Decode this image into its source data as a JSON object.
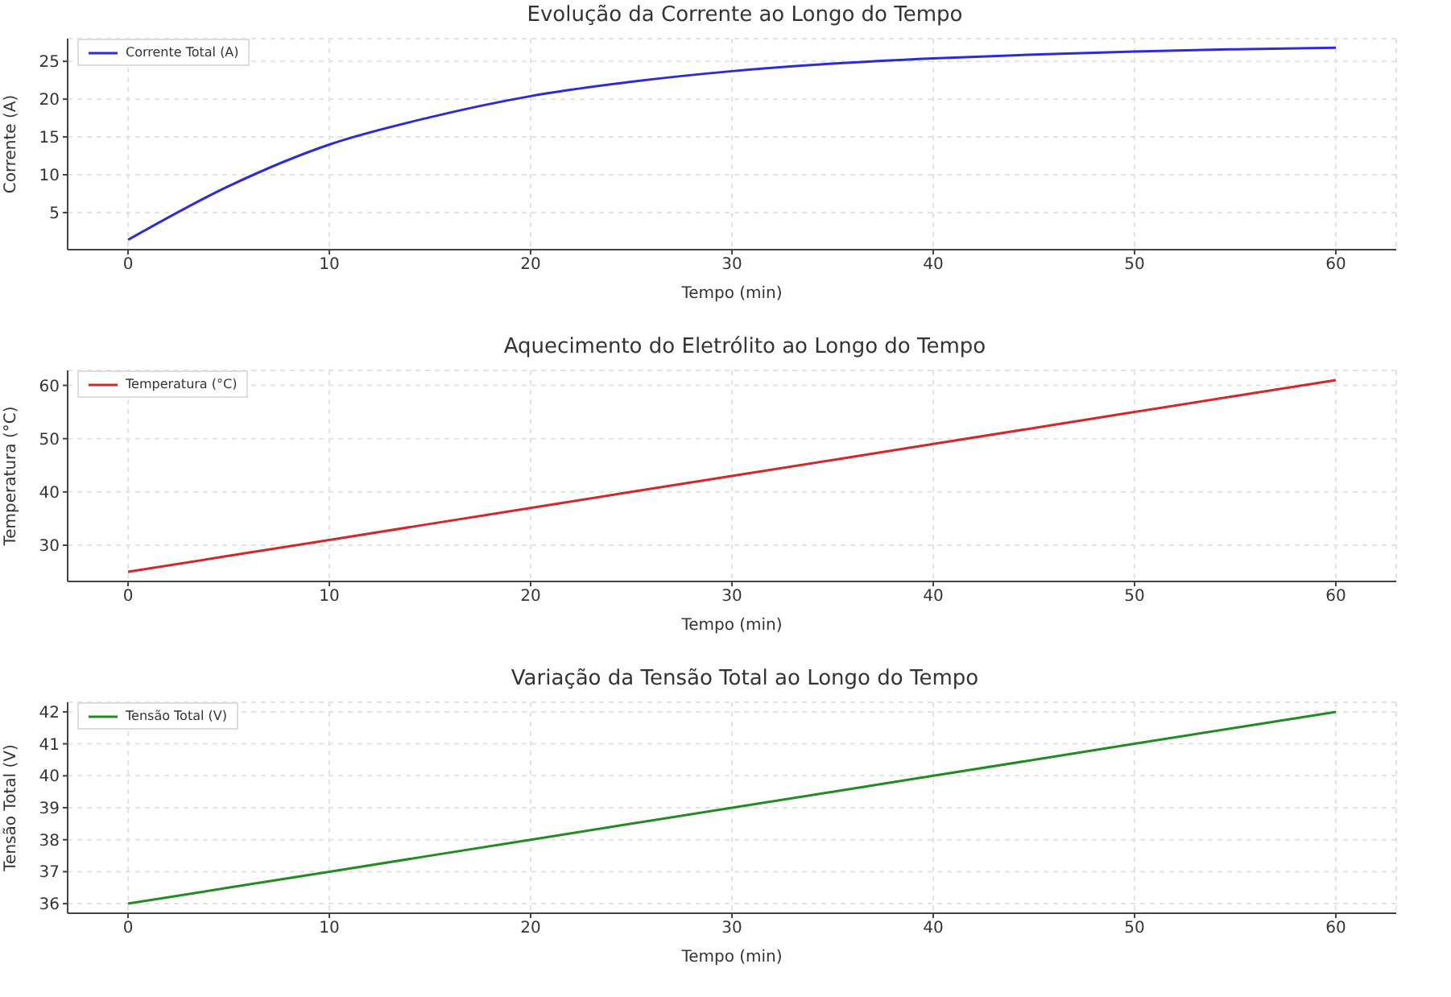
{
  "chart_data": [
    {
      "type": "line",
      "title": "Evolução da Corrente ao Longo do Tempo",
      "xlabel": "Tempo (min)",
      "ylabel": "Corrente (A)",
      "x": [
        0,
        5,
        10,
        15,
        20,
        25,
        30,
        35,
        40,
        45,
        50,
        55,
        60
      ],
      "series": [
        {
          "name": "Corrente Total (A)",
          "color": "#2b2bd9",
          "values": [
            1.4,
            8.5,
            14,
            17.6,
            20.4,
            22.3,
            23.7,
            24.7,
            25.4,
            25.9,
            26.3,
            26.6,
            26.8
          ]
        }
      ],
      "xlim": [
        -3,
        63
      ],
      "xticks": [
        0,
        10,
        20,
        30,
        40,
        50,
        60
      ],
      "ylim": [
        0.1,
        28
      ],
      "yticks": [
        5,
        10,
        15,
        20,
        25
      ],
      "grid": true,
      "legend": "top left",
      "marker": "none",
      "line_style": "solid"
    },
    {
      "type": "line",
      "title": "Aquecimento do Eletrólito ao Longo do Tempo",
      "xlabel": "Tempo (min)",
      "ylabel": "Temperatura (°C)",
      "x": [
        0,
        10,
        20,
        30,
        40,
        50,
        60
      ],
      "series": [
        {
          "name": "Temperatura (°C)",
          "color": "#d62728",
          "values": [
            25,
            31,
            37,
            43,
            49,
            55,
            61
          ]
        }
      ],
      "xlim": [
        -3,
        63
      ],
      "xticks": [
        0,
        10,
        20,
        30,
        40,
        50,
        60
      ],
      "ylim": [
        23.2,
        62.8
      ],
      "yticks": [
        30,
        40,
        50,
        60
      ],
      "grid": true,
      "legend": "top left",
      "marker": "none",
      "line_style": "solid"
    },
    {
      "type": "line",
      "title": "Variação da Tensão Total ao Longo do Tempo",
      "xlabel": "Tempo (min)",
      "ylabel": "Tensão Total (V)",
      "x": [
        0,
        10,
        20,
        30,
        40,
        50,
        60
      ],
      "series": [
        {
          "name": "Tensão Total (V)",
          "color": "#228b22",
          "values": [
            36,
            37,
            38,
            39,
            40,
            41,
            42
          ]
        }
      ],
      "xlim": [
        -3,
        63
      ],
      "xticks": [
        0,
        10,
        20,
        30,
        40,
        50,
        60
      ],
      "ylim": [
        35.7,
        42.3
      ],
      "yticks": [
        36,
        37,
        38,
        39,
        40,
        41,
        42
      ],
      "grid": true,
      "legend": "top left",
      "marker": "none",
      "line_style": "solid"
    }
  ]
}
